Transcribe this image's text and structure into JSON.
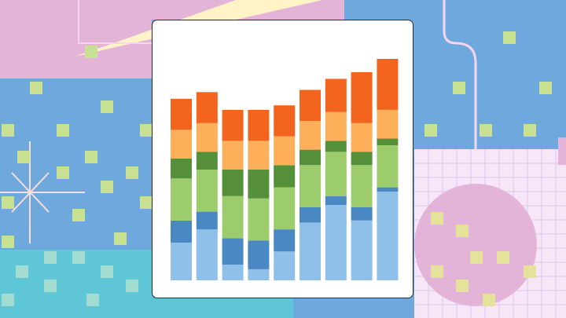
{
  "colors": {
    "background": "#6fa8dc",
    "pink": "#e3b4d8",
    "cream": "#fff3c7",
    "lavender": "#f6e6f7",
    "cyan": "#5ec6d6",
    "lime": "#c8e092",
    "grid_line": "#d9c2e8",
    "sparkle": "#f7dede"
  },
  "chart_data": {
    "type": "bar",
    "stacked": true,
    "categories": [
      "",
      "",
      "",
      "",
      "",
      "",
      "",
      "",
      ""
    ],
    "ylim": [
      0,
      100
    ],
    "grid": false,
    "legend": "none",
    "series": [
      {
        "color": "#8fc0ea",
        "values": [
          17,
          23,
          7,
          5,
          13,
          26,
          34,
          27,
          40
        ]
      },
      {
        "color": "#4a88c4",
        "values": [
          10,
          8,
          12,
          13,
          10,
          7,
          4,
          6,
          2
        ]
      },
      {
        "color": "#9ccc6b",
        "values": [
          19,
          19,
          19,
          19,
          19,
          19,
          20,
          19,
          19
        ]
      },
      {
        "color": "#568f3a",
        "values": [
          9,
          8,
          12,
          13,
          10,
          7,
          5,
          6,
          3
        ]
      },
      {
        "color": "#fdaf5a",
        "values": [
          13,
          13,
          13,
          13,
          13,
          13,
          13,
          13,
          13
        ]
      },
      {
        "color": "#f3641f",
        "values": [
          14,
          14,
          14,
          14,
          14,
          14,
          15,
          23,
          23
        ]
      }
    ]
  }
}
